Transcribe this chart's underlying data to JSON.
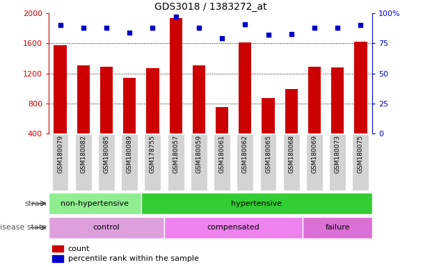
{
  "title": "GDS3018 / 1383272_at",
  "samples": [
    "GSM180079",
    "GSM180082",
    "GSM180085",
    "GSM180089",
    "GSM178755",
    "GSM180057",
    "GSM180059",
    "GSM180061",
    "GSM180062",
    "GSM180065",
    "GSM180068",
    "GSM180069",
    "GSM180073",
    "GSM180075"
  ],
  "counts": [
    1580,
    1310,
    1290,
    1140,
    1270,
    1940,
    1310,
    750,
    1610,
    870,
    990,
    1290,
    1280,
    1620
  ],
  "percentile": [
    90,
    88,
    88,
    84,
    88,
    97,
    88,
    79,
    91,
    82,
    83,
    88,
    88,
    90
  ],
  "ylim_left": [
    400,
    2000
  ],
  "ylim_right": [
    0,
    100
  ],
  "yticks_left": [
    400,
    800,
    1200,
    1600,
    2000
  ],
  "yticks_right": [
    0,
    25,
    50,
    75,
    100
  ],
  "bar_color": "#cc0000",
  "dot_color": "#0000cc",
  "grid_color": "#000000",
  "strain_groups": [
    {
      "label": "non-hypertensive",
      "start": 0,
      "end": 4,
      "color": "#90ee90"
    },
    {
      "label": "hypertensive",
      "start": 4,
      "end": 14,
      "color": "#32cd32"
    }
  ],
  "disease_groups": [
    {
      "label": "control",
      "start": 0,
      "end": 5,
      "color": "#dda0dd"
    },
    {
      "label": "compensated",
      "start": 5,
      "end": 11,
      "color": "#ee82ee"
    },
    {
      "label": "failure",
      "start": 11,
      "end": 14,
      "color": "#da70d6"
    }
  ],
  "legend_count_label": "count",
  "legend_percentile_label": "percentile rank within the sample",
  "strain_label": "strain",
  "disease_label": "disease state",
  "bg_color": "#ffffff",
  "tick_area_color": "#d3d3d3"
}
